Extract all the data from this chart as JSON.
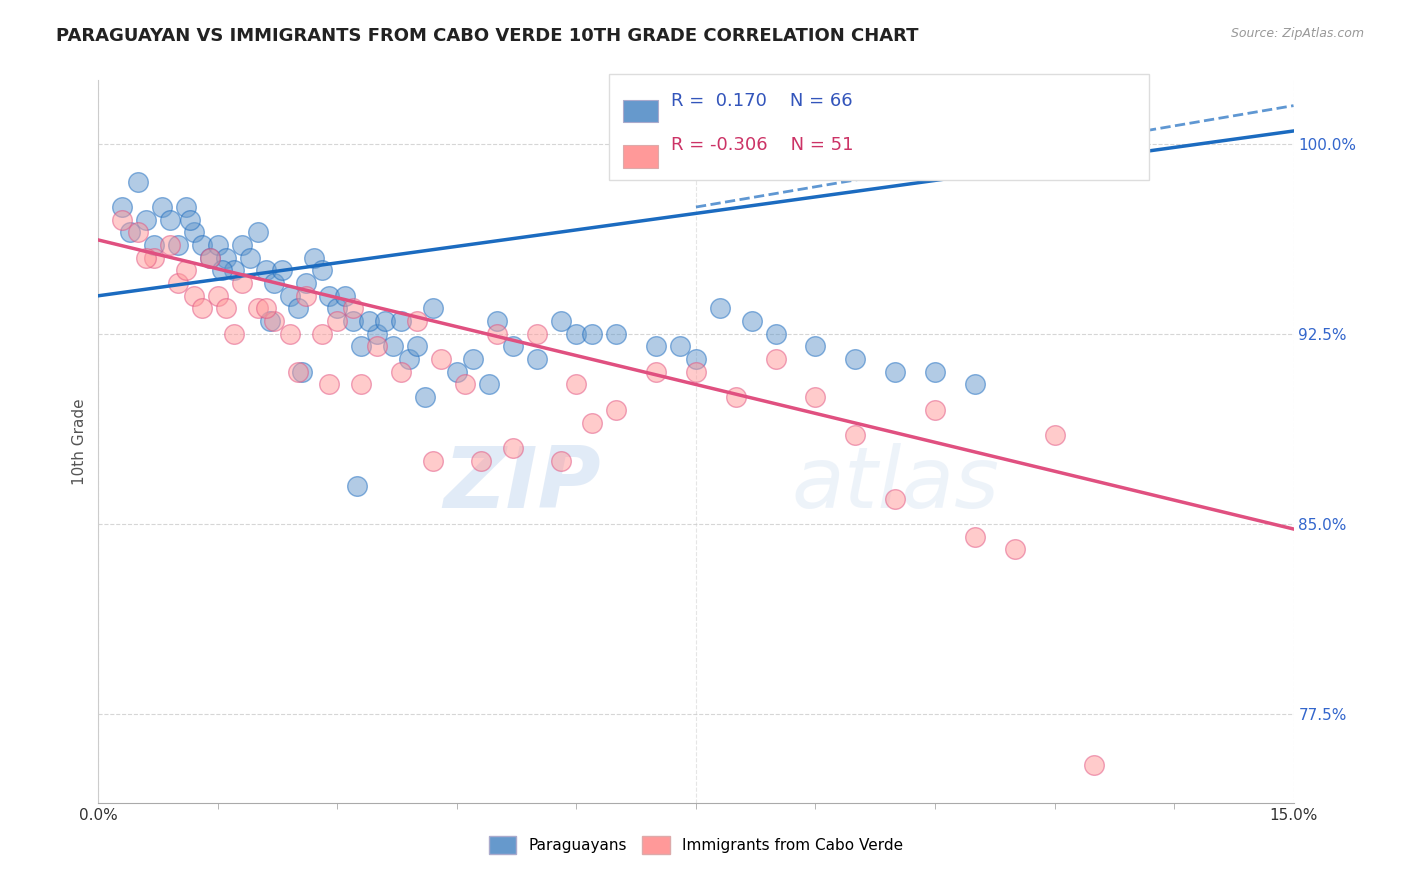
{
  "title": "PARAGUAYAN VS IMMIGRANTS FROM CABO VERDE 10TH GRADE CORRELATION CHART",
  "source_text": "Source: ZipAtlas.com",
  "ylabel": "10th Grade",
  "xlim": [
    0.0,
    15.0
  ],
  "ylim": [
    74.0,
    102.5
  ],
  "yticks": [
    77.5,
    85.0,
    92.5,
    100.0
  ],
  "ytick_labels": [
    "77.5%",
    "85.0%",
    "92.5%",
    "100.0%"
  ],
  "xtick_labels": [
    "0.0%",
    "15.0%"
  ],
  "blue_R": 0.17,
  "blue_N": 66,
  "pink_R": -0.306,
  "pink_N": 51,
  "blue_color": "#6699CC",
  "pink_color": "#FF9999",
  "blue_line_color": "#1B6BC0",
  "pink_line_color": "#E05080",
  "watermark_zip": "ZIP",
  "watermark_atlas": "atlas",
  "legend_label_blue": "Paraguayans",
  "legend_label_pink": "Immigrants from Cabo Verde",
  "blue_scatter_x": [
    0.3,
    0.5,
    0.6,
    0.8,
    0.9,
    1.0,
    1.1,
    1.2,
    1.3,
    1.4,
    1.5,
    1.6,
    1.7,
    1.8,
    1.9,
    2.0,
    2.1,
    2.2,
    2.3,
    2.4,
    2.5,
    2.6,
    2.7,
    2.8,
    2.9,
    3.0,
    3.1,
    3.2,
    3.3,
    3.5,
    3.7,
    3.9,
    4.0,
    4.2,
    4.5,
    4.7,
    5.0,
    5.2,
    5.5,
    5.8,
    6.0,
    6.5,
    7.0,
    7.3,
    7.8,
    8.2,
    8.5,
    9.0,
    9.5,
    10.0,
    10.5,
    11.0,
    0.4,
    0.7,
    1.15,
    1.55,
    2.15,
    2.55,
    3.25,
    4.1,
    4.9,
    6.2,
    7.5,
    3.4,
    3.6,
    3.8
  ],
  "blue_scatter_y": [
    97.5,
    98.5,
    97.0,
    97.5,
    97.0,
    96.0,
    97.5,
    96.5,
    96.0,
    95.5,
    96.0,
    95.5,
    95.0,
    96.0,
    95.5,
    96.5,
    95.0,
    94.5,
    95.0,
    94.0,
    93.5,
    94.5,
    95.5,
    95.0,
    94.0,
    93.5,
    94.0,
    93.0,
    92.0,
    92.5,
    92.0,
    91.5,
    92.0,
    93.5,
    91.0,
    91.5,
    93.0,
    92.0,
    91.5,
    93.0,
    92.5,
    92.5,
    92.0,
    92.0,
    93.5,
    93.0,
    92.5,
    92.0,
    91.5,
    91.0,
    91.0,
    90.5,
    96.5,
    96.0,
    97.0,
    95.0,
    93.0,
    91.0,
    86.5,
    90.0,
    90.5,
    92.5,
    91.5,
    93.0,
    93.0,
    93.0
  ],
  "pink_scatter_x": [
    0.3,
    0.5,
    0.7,
    0.9,
    1.0,
    1.1,
    1.2,
    1.4,
    1.5,
    1.6,
    1.8,
    2.0,
    2.2,
    2.4,
    2.6,
    2.8,
    3.0,
    3.2,
    3.5,
    3.8,
    4.0,
    4.3,
    4.6,
    5.0,
    5.5,
    6.0,
    6.5,
    7.0,
    7.5,
    8.0,
    8.5,
    9.0,
    9.5,
    10.0,
    10.5,
    11.0,
    11.5,
    12.0,
    12.5,
    0.6,
    1.3,
    1.7,
    2.1,
    2.5,
    2.9,
    3.3,
    4.2,
    4.8,
    5.2,
    5.8,
    6.2
  ],
  "pink_scatter_y": [
    97.0,
    96.5,
    95.5,
    96.0,
    94.5,
    95.0,
    94.0,
    95.5,
    94.0,
    93.5,
    94.5,
    93.5,
    93.0,
    92.5,
    94.0,
    92.5,
    93.0,
    93.5,
    92.0,
    91.0,
    93.0,
    91.5,
    90.5,
    92.5,
    92.5,
    90.5,
    89.5,
    91.0,
    91.0,
    90.0,
    91.5,
    90.0,
    88.5,
    86.0,
    89.5,
    84.5,
    84.0,
    88.5,
    75.5,
    95.5,
    93.5,
    92.5,
    93.5,
    91.0,
    90.5,
    90.5,
    87.5,
    87.5,
    88.0,
    87.5,
    89.0
  ],
  "blue_line_x0": 0.0,
  "blue_line_x1": 15.0,
  "blue_line_y0": 94.0,
  "blue_line_y1": 100.5,
  "blue_dash_x0": 7.5,
  "blue_dash_x1": 15.0,
  "blue_dash_y0": 97.5,
  "blue_dash_y1": 101.5,
  "pink_line_x0": 0.0,
  "pink_line_x1": 15.0,
  "pink_line_y0": 96.2,
  "pink_line_y1": 84.8
}
